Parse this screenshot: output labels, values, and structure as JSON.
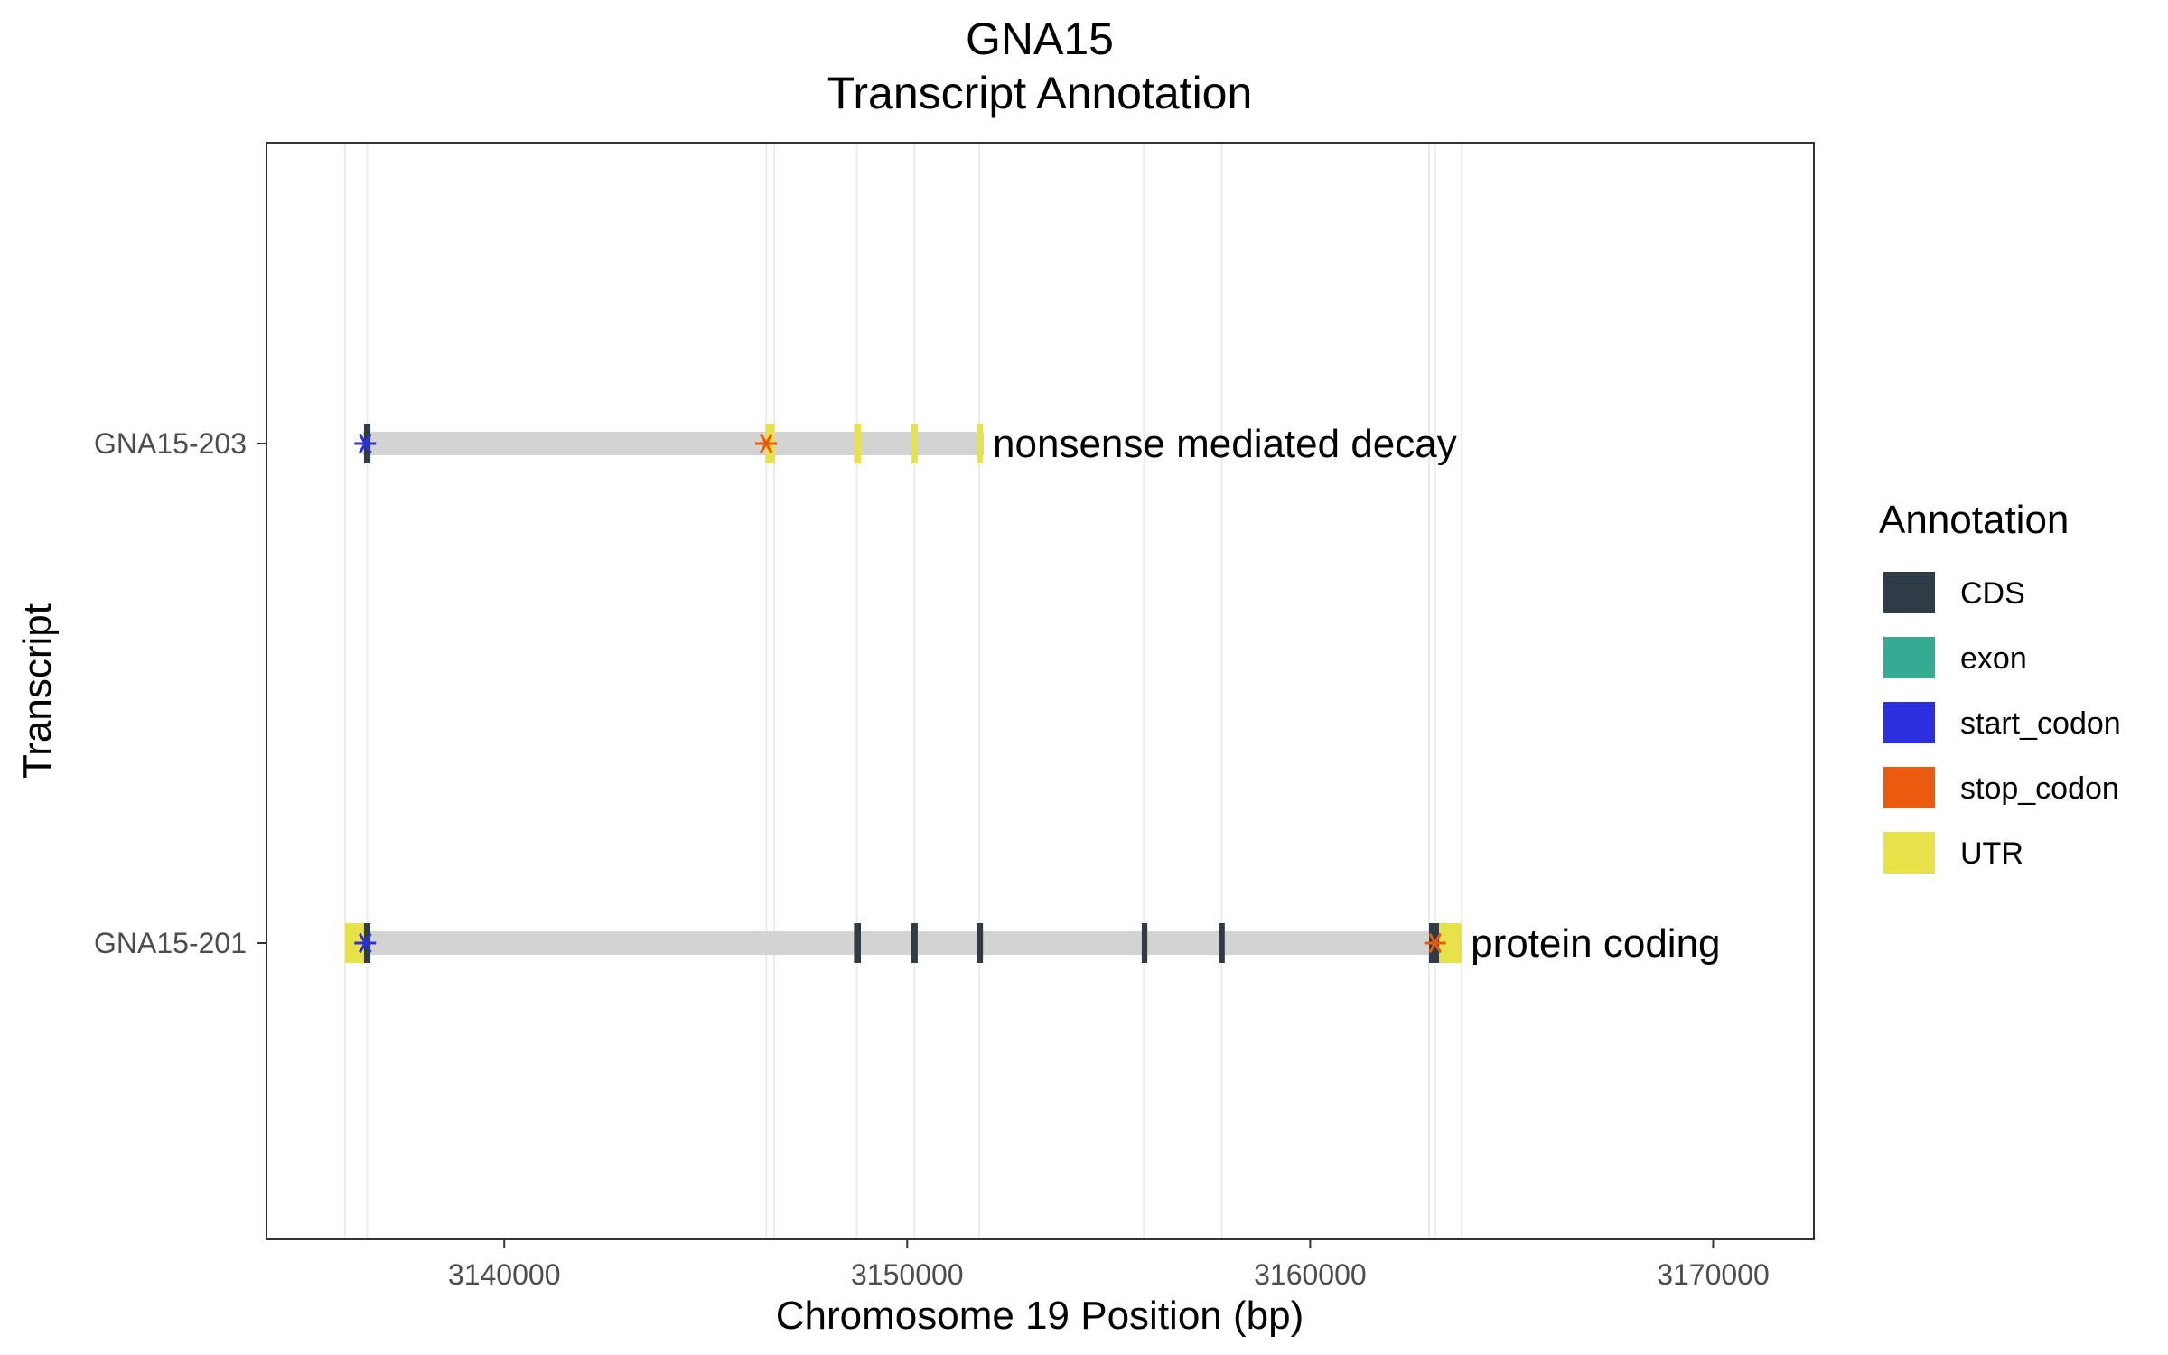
{
  "chart_data": {
    "type": "gene-structure",
    "title_line1": "GNA15",
    "title_line2": "Transcript Annotation",
    "xlabel": "Chromosome 19 Position (bp)",
    "ylabel": "Transcript",
    "xlim": [
      3134100,
      3172500
    ],
    "xticks": [
      3140000,
      3150000,
      3160000,
      3170000
    ],
    "xtick_labels": [
      "3140000",
      "3150000",
      "3160000",
      "3170000"
    ],
    "grid_x": [
      3136050,
      3136600,
      3146500,
      3146700,
      3148750,
      3150180,
      3151790,
      3155880,
      3157800,
      3162950,
      3163100,
      3163760
    ],
    "legend": {
      "title": "Annotation",
      "position": "right",
      "items": [
        {
          "label": "CDS",
          "color": "#2f3b45"
        },
        {
          "label": "exon",
          "color": "#35ac92"
        },
        {
          "label": "start_codon",
          "color": "#2c2fdc"
        },
        {
          "label": "stop_codon",
          "color": "#ea5a0f"
        },
        {
          "label": "UTR",
          "color": "#e8e24a"
        }
      ]
    },
    "intron_color": "#d3d3d3",
    "transcripts": [
      {
        "name": "GNA15-203",
        "biotype": "nonsense mediated decay",
        "start": 3136500,
        "end": 3151900,
        "features": [
          {
            "type": "CDS",
            "start": 3136520,
            "end": 3136680
          },
          {
            "type": "UTR",
            "start": 3146480,
            "end": 3146720
          },
          {
            "type": "UTR",
            "start": 3148680,
            "end": 3148850
          },
          {
            "type": "UTR",
            "start": 3150100,
            "end": 3150260
          },
          {
            "type": "UTR",
            "start": 3151720,
            "end": 3151880
          }
        ],
        "start_codon": 3136550,
        "stop_codon": 3146500
      },
      {
        "name": "GNA15-201",
        "biotype": "protein coding",
        "start": 3136050,
        "end": 3163760,
        "features": [
          {
            "type": "UTR",
            "start": 3136050,
            "end": 3136520
          },
          {
            "type": "CDS",
            "start": 3136520,
            "end": 3136680
          },
          {
            "type": "CDS",
            "start": 3148680,
            "end": 3148850
          },
          {
            "type": "CDS",
            "start": 3150100,
            "end": 3150260
          },
          {
            "type": "CDS",
            "start": 3151720,
            "end": 3151880
          },
          {
            "type": "CDS",
            "start": 3155820,
            "end": 3155960
          },
          {
            "type": "CDS",
            "start": 3157740,
            "end": 3157880
          },
          {
            "type": "CDS",
            "start": 3162950,
            "end": 3163200
          },
          {
            "type": "UTR",
            "start": 3163200,
            "end": 3163760
          }
        ],
        "start_codon": 3136550,
        "stop_codon": 3163100
      }
    ]
  }
}
